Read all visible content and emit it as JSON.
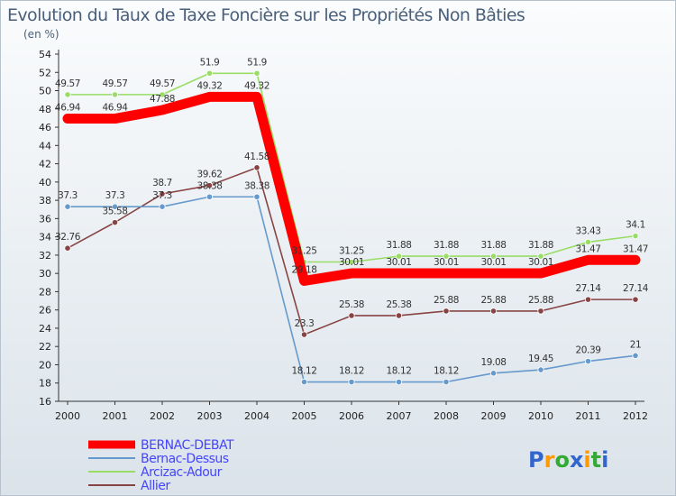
{
  "chart_data": {
    "type": "line",
    "title": "Evolution du Taux de Taxe Foncière sur les Propriétés Non Bâties",
    "subtitle": "(en %)",
    "xlabel": "",
    "ylabel": "",
    "ylim": [
      16,
      54
    ],
    "ytick_step": 2,
    "grid": false,
    "legend_position": "bottom-left",
    "categories": [
      "2000",
      "2001",
      "2002",
      "2003",
      "2004",
      "2005",
      "2006",
      "2007",
      "2008",
      "2009",
      "2010",
      "2011",
      "2012"
    ],
    "series": [
      {
        "name": "BERNAC-DEBAT",
        "color": "#ff0000",
        "values": [
          46.94,
          46.94,
          47.88,
          49.32,
          49.32,
          29.18,
          30.01,
          30.01,
          30.01,
          30.01,
          30.01,
          31.47,
          31.47
        ],
        "labels": [
          "46.94",
          "46.94",
          "47.88",
          "49.32",
          "49.32",
          "29.18",
          "30.01",
          "30.01",
          "30.01",
          "30.01",
          "30.01",
          "31.47",
          "31.47"
        ]
      },
      {
        "name": "Bernac-Dessus",
        "color": "#6699cc",
        "values": [
          37.3,
          37.3,
          37.3,
          38.38,
          38.38,
          18.12,
          18.12,
          18.12,
          18.12,
          19.08,
          19.45,
          20.39,
          21
        ],
        "labels": [
          "37.3",
          "37.3",
          "37.3",
          "38.38",
          "38.38",
          "18.12",
          "18.12",
          "18.12",
          "18.12",
          "19.08",
          "19.45",
          "20.39",
          "21"
        ]
      },
      {
        "name": "Arcizac-Adour",
        "color": "#99dd66",
        "values": [
          49.57,
          49.57,
          49.57,
          51.9,
          51.9,
          31.25,
          31.25,
          31.88,
          31.88,
          31.88,
          31.88,
          33.43,
          34.1
        ],
        "labels": [
          "49.57",
          "49.57",
          "49.57",
          "51.9",
          "51.9",
          "31.25",
          "31.25",
          "31.88",
          "31.88",
          "31.88",
          "31.88",
          "33.43",
          "34.1"
        ]
      },
      {
        "name": "Allier",
        "color": "#884444",
        "values": [
          32.76,
          35.58,
          38.7,
          39.62,
          41.58,
          23.3,
          25.38,
          25.38,
          25.88,
          25.88,
          25.88,
          27.14,
          27.14
        ],
        "labels": [
          "32.76",
          "35.58",
          "38.7",
          "39.62",
          "41.58",
          "23.3",
          "25.38",
          "25.38",
          "25.88",
          "25.88",
          "25.88",
          "27.14",
          "27.14"
        ]
      }
    ]
  },
  "legend": {
    "text_color": "#4444ff",
    "items": [
      "BERNAC-DEBAT",
      "Bernac-Dessus",
      "Arcizac-Adour",
      "Allier"
    ]
  },
  "logo": {
    "text": "Proxiti",
    "letters": [
      "P",
      "r",
      "o",
      "x",
      "i",
      "t",
      "i"
    ],
    "colors": [
      "#3366cc",
      "#ff9900",
      "#33aa33",
      "#3366cc",
      "#ff9900",
      "#33aa33",
      "#3366cc"
    ]
  }
}
